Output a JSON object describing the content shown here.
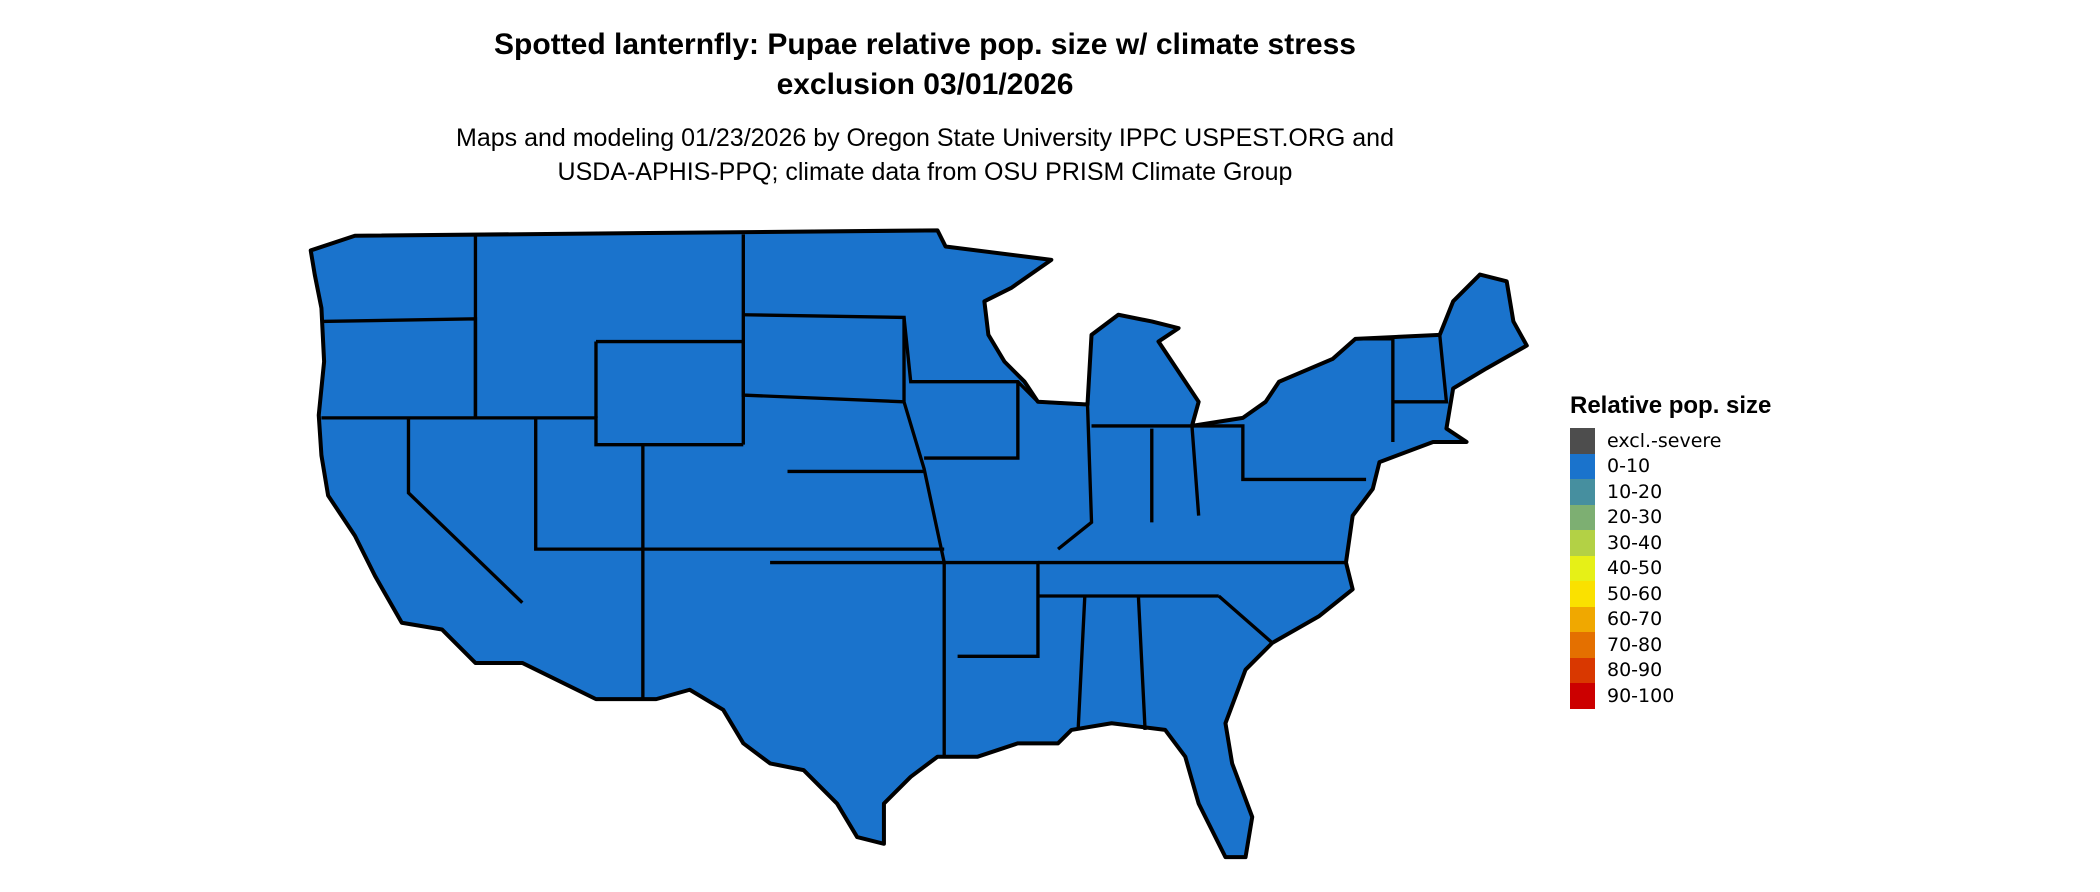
{
  "title": {
    "line1": "Spotted lanternfly: Pupae relative pop. size w/ climate stress",
    "line2": "exclusion 03/01/2026"
  },
  "subtitle": {
    "line1": "Maps and modeling 01/23/2026 by Oregon State University IPPC USPEST.ORG and",
    "line2": "USDA-APHIS-PPQ; climate data from OSU PRISM Climate Group"
  },
  "map": {
    "region": "Conterminous United States",
    "fill_category": "0-10",
    "fill_color": "#1A73CC",
    "border_color": "#000000"
  },
  "legend": {
    "title": "Relative pop. size",
    "items": [
      {
        "label": "excl.-severe",
        "color": "#4D4D4D"
      },
      {
        "label": "0-10",
        "color": "#1A73CC"
      },
      {
        "label": "10-20",
        "color": "#468F9F"
      },
      {
        "label": "20-30",
        "color": "#7DAF72"
      },
      {
        "label": "30-40",
        "color": "#B3D145"
      },
      {
        "label": "40-50",
        "color": "#E6F017"
      },
      {
        "label": "50-60",
        "color": "#FAE100"
      },
      {
        "label": "60-70",
        "color": "#F0A800"
      },
      {
        "label": "70-80",
        "color": "#E47000"
      },
      {
        "label": "80-90",
        "color": "#D93800"
      },
      {
        "label": "90-100",
        "color": "#CC0000"
      }
    ]
  }
}
